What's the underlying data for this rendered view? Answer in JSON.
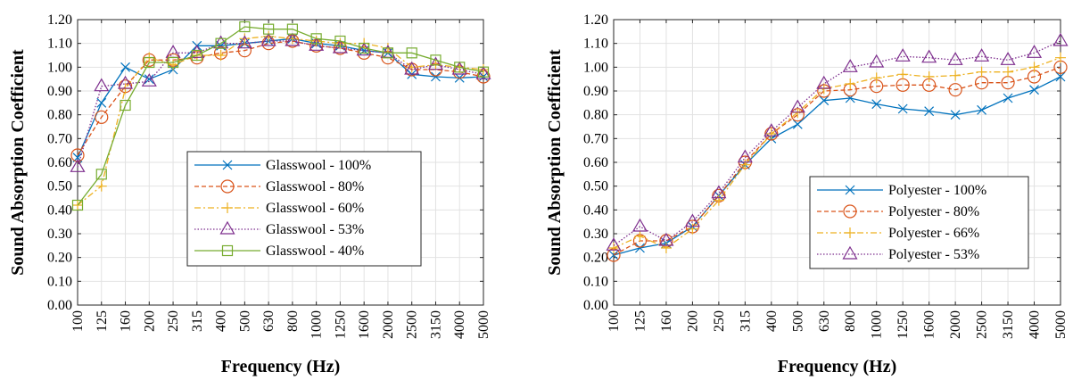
{
  "chart_data": [
    {
      "type": "line",
      "xlabel": "Frequency (Hz)",
      "ylabel": "Sound Absorption Coefficient",
      "categories": [
        "100",
        "125",
        "160",
        "200",
        "250",
        "315",
        "400",
        "500",
        "630",
        "800",
        "1000",
        "1250",
        "1600",
        "2000",
        "2500",
        "3150",
        "4000",
        "5000"
      ],
      "ylim": [
        0,
        1.2
      ],
      "yticks": [
        "0.00",
        "0.10",
        "0.20",
        "0.30",
        "0.40",
        "0.50",
        "0.60",
        "0.70",
        "0.80",
        "0.90",
        "1.00",
        "1.10",
        "1.20"
      ],
      "grid": true,
      "legend_position": "center-right",
      "series": [
        {
          "name": "Glasswool - 100%",
          "color": "#0072bd",
          "marker": "x",
          "dash": "",
          "values": [
            0.62,
            0.85,
            1.0,
            0.95,
            0.99,
            1.09,
            1.09,
            1.1,
            1.11,
            1.12,
            1.1,
            1.09,
            1.07,
            1.06,
            0.97,
            0.96,
            0.955,
            0.96
          ]
        },
        {
          "name": "Glasswool - 80%",
          "color": "#d95319",
          "marker": "circle",
          "dash": "5,3",
          "values": [
            0.63,
            0.79,
            0.92,
            1.03,
            1.03,
            1.04,
            1.06,
            1.07,
            1.1,
            1.11,
            1.09,
            1.08,
            1.06,
            1.04,
            0.99,
            0.99,
            0.98,
            0.96
          ]
        },
        {
          "name": "Glasswool - 60%",
          "color": "#edb120",
          "marker": "plus",
          "dash": "7,3,2,3",
          "values": [
            0.42,
            0.5,
            0.91,
            1.04,
            1.01,
            1.05,
            1.05,
            1.12,
            1.13,
            1.12,
            1.11,
            1.1,
            1.1,
            1.08,
            1.0,
            1.01,
            1.0,
            0.99
          ]
        },
        {
          "name": "Glasswool - 53%",
          "color": "#7e2f8e",
          "marker": "triangle",
          "dash": "1.5,2",
          "values": [
            0.58,
            0.92,
            0.93,
            0.94,
            1.06,
            1.06,
            1.1,
            1.1,
            1.11,
            1.11,
            1.09,
            1.08,
            1.07,
            1.06,
            0.99,
            1.01,
            0.99,
            0.97
          ]
        },
        {
          "name": "Glasswool - 40%",
          "color": "#77ac30",
          "marker": "square",
          "dash": "",
          "values": [
            0.42,
            0.55,
            0.84,
            1.02,
            1.02,
            1.05,
            1.1,
            1.17,
            1.16,
            1.16,
            1.12,
            1.11,
            1.08,
            1.06,
            1.06,
            1.03,
            1.0,
            0.98
          ]
        }
      ]
    },
    {
      "type": "line",
      "xlabel": "Frequency (Hz)",
      "ylabel": "Sound Absorption Coefficient",
      "categories": [
        "100",
        "125",
        "160",
        "200",
        "250",
        "315",
        "400",
        "500",
        "630",
        "800",
        "1000",
        "1250",
        "1600",
        "2000",
        "2500",
        "3150",
        "4000",
        "5000"
      ],
      "ylim": [
        0,
        1.2
      ],
      "yticks": [
        "0.00",
        "0.10",
        "0.20",
        "0.30",
        "0.40",
        "0.50",
        "0.60",
        "0.70",
        "0.80",
        "0.90",
        "1.00",
        "1.10",
        "1.20"
      ],
      "grid": true,
      "legend_position": "center-right",
      "series": [
        {
          "name": "Polyester - 100%",
          "color": "#0072bd",
          "marker": "x",
          "dash": "",
          "values": [
            0.21,
            0.24,
            0.26,
            0.33,
            0.46,
            0.59,
            0.7,
            0.76,
            0.86,
            0.87,
            0.845,
            0.825,
            0.815,
            0.8,
            0.82,
            0.87,
            0.905,
            0.96
          ]
        },
        {
          "name": "Polyester - 80%",
          "color": "#d95319",
          "marker": "circle",
          "dash": "5,3",
          "values": [
            0.21,
            0.27,
            0.27,
            0.33,
            0.46,
            0.6,
            0.72,
            0.8,
            0.9,
            0.905,
            0.92,
            0.925,
            0.925,
            0.905,
            0.935,
            0.935,
            0.96,
            1.0
          ]
        },
        {
          "name": "Polyester - 66%",
          "color": "#edb120",
          "marker": "plus",
          "dash": "7,3,2,3",
          "values": [
            0.24,
            0.29,
            0.24,
            0.32,
            0.44,
            0.59,
            0.72,
            0.81,
            0.91,
            0.93,
            0.955,
            0.97,
            0.96,
            0.965,
            0.98,
            0.98,
            1.0,
            1.04
          ]
        },
        {
          "name": "Polyester - 53%",
          "color": "#7e2f8e",
          "marker": "triangle",
          "dash": "1.5,2",
          "values": [
            0.25,
            0.33,
            0.27,
            0.35,
            0.47,
            0.62,
            0.73,
            0.83,
            0.93,
            1.0,
            1.02,
            1.045,
            1.04,
            1.03,
            1.045,
            1.03,
            1.06,
            1.11
          ]
        }
      ]
    }
  ]
}
